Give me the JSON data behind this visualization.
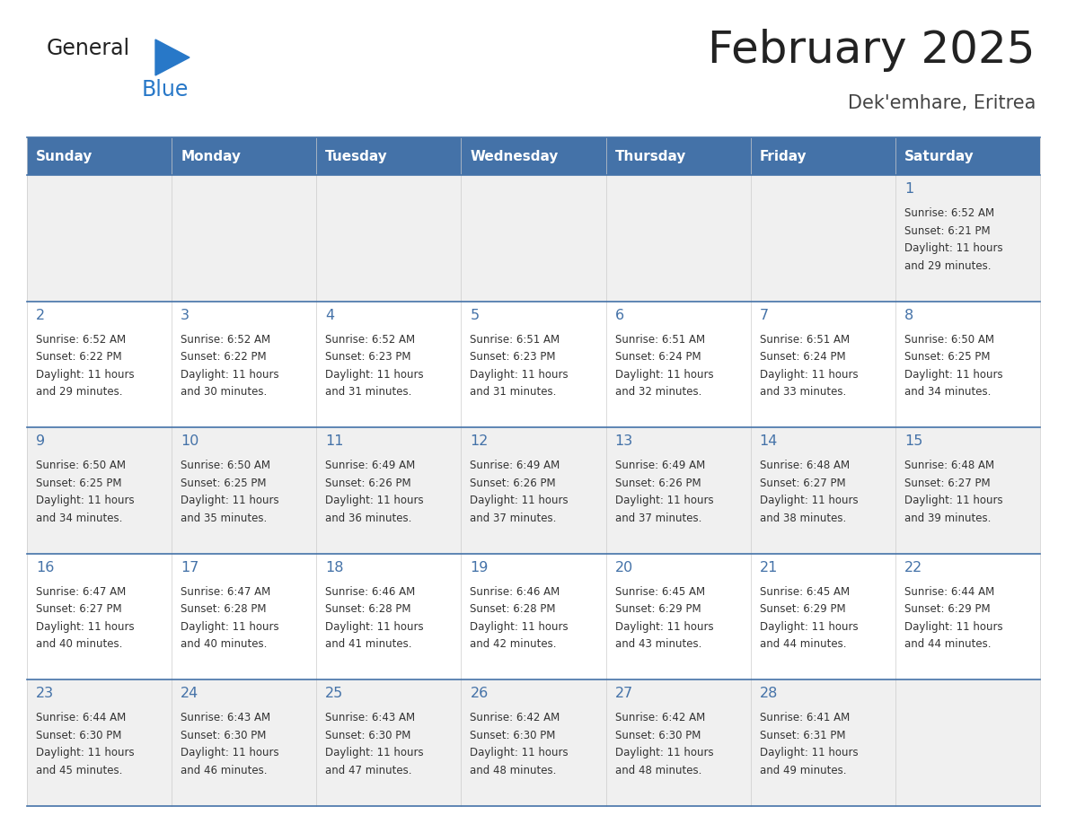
{
  "title": "February 2025",
  "subtitle": "Dek'emhare, Eritrea",
  "days_of_week": [
    "Sunday",
    "Monday",
    "Tuesday",
    "Wednesday",
    "Thursday",
    "Friday",
    "Saturday"
  ],
  "header_bg": "#4472a8",
  "header_text": "#ffffff",
  "row_bg_light": "#f0f0f0",
  "row_bg_white": "#ffffff",
  "border_color": "#4472a8",
  "day_number_color": "#4472a8",
  "cell_text_color": "#333333",
  "logo_general_color": "#222222",
  "logo_blue_color": "#2878c8",
  "logo_triangle_color": "#2878c8",
  "title_color": "#222222",
  "subtitle_color": "#444444",
  "calendar_data": [
    [
      null,
      null,
      null,
      null,
      null,
      null,
      {
        "day": 1,
        "sunrise": "6:52 AM",
        "sunset": "6:21 PM",
        "daylight": "11 hours and 29 minutes"
      }
    ],
    [
      {
        "day": 2,
        "sunrise": "6:52 AM",
        "sunset": "6:22 PM",
        "daylight": "11 hours and 29 minutes"
      },
      {
        "day": 3,
        "sunrise": "6:52 AM",
        "sunset": "6:22 PM",
        "daylight": "11 hours and 30 minutes"
      },
      {
        "day": 4,
        "sunrise": "6:52 AM",
        "sunset": "6:23 PM",
        "daylight": "11 hours and 31 minutes"
      },
      {
        "day": 5,
        "sunrise": "6:51 AM",
        "sunset": "6:23 PM",
        "daylight": "11 hours and 31 minutes"
      },
      {
        "day": 6,
        "sunrise": "6:51 AM",
        "sunset": "6:24 PM",
        "daylight": "11 hours and 32 minutes"
      },
      {
        "day": 7,
        "sunrise": "6:51 AM",
        "sunset": "6:24 PM",
        "daylight": "11 hours and 33 minutes"
      },
      {
        "day": 8,
        "sunrise": "6:50 AM",
        "sunset": "6:25 PM",
        "daylight": "11 hours and 34 minutes"
      }
    ],
    [
      {
        "day": 9,
        "sunrise": "6:50 AM",
        "sunset": "6:25 PM",
        "daylight": "11 hours and 34 minutes"
      },
      {
        "day": 10,
        "sunrise": "6:50 AM",
        "sunset": "6:25 PM",
        "daylight": "11 hours and 35 minutes"
      },
      {
        "day": 11,
        "sunrise": "6:49 AM",
        "sunset": "6:26 PM",
        "daylight": "11 hours and 36 minutes"
      },
      {
        "day": 12,
        "sunrise": "6:49 AM",
        "sunset": "6:26 PM",
        "daylight": "11 hours and 37 minutes"
      },
      {
        "day": 13,
        "sunrise": "6:49 AM",
        "sunset": "6:26 PM",
        "daylight": "11 hours and 37 minutes"
      },
      {
        "day": 14,
        "sunrise": "6:48 AM",
        "sunset": "6:27 PM",
        "daylight": "11 hours and 38 minutes"
      },
      {
        "day": 15,
        "sunrise": "6:48 AM",
        "sunset": "6:27 PM",
        "daylight": "11 hours and 39 minutes"
      }
    ],
    [
      {
        "day": 16,
        "sunrise": "6:47 AM",
        "sunset": "6:27 PM",
        "daylight": "11 hours and 40 minutes"
      },
      {
        "day": 17,
        "sunrise": "6:47 AM",
        "sunset": "6:28 PM",
        "daylight": "11 hours and 40 minutes"
      },
      {
        "day": 18,
        "sunrise": "6:46 AM",
        "sunset": "6:28 PM",
        "daylight": "11 hours and 41 minutes"
      },
      {
        "day": 19,
        "sunrise": "6:46 AM",
        "sunset": "6:28 PM",
        "daylight": "11 hours and 42 minutes"
      },
      {
        "day": 20,
        "sunrise": "6:45 AM",
        "sunset": "6:29 PM",
        "daylight": "11 hours and 43 minutes"
      },
      {
        "day": 21,
        "sunrise": "6:45 AM",
        "sunset": "6:29 PM",
        "daylight": "11 hours and 44 minutes"
      },
      {
        "day": 22,
        "sunrise": "6:44 AM",
        "sunset": "6:29 PM",
        "daylight": "11 hours and 44 minutes"
      }
    ],
    [
      {
        "day": 23,
        "sunrise": "6:44 AM",
        "sunset": "6:30 PM",
        "daylight": "11 hours and 45 minutes"
      },
      {
        "day": 24,
        "sunrise": "6:43 AM",
        "sunset": "6:30 PM",
        "daylight": "11 hours and 46 minutes"
      },
      {
        "day": 25,
        "sunrise": "6:43 AM",
        "sunset": "6:30 PM",
        "daylight": "11 hours and 47 minutes"
      },
      {
        "day": 26,
        "sunrise": "6:42 AM",
        "sunset": "6:30 PM",
        "daylight": "11 hours and 48 minutes"
      },
      {
        "day": 27,
        "sunrise": "6:42 AM",
        "sunset": "6:30 PM",
        "daylight": "11 hours and 48 minutes"
      },
      {
        "day": 28,
        "sunrise": "6:41 AM",
        "sunset": "6:31 PM",
        "daylight": "11 hours and 49 minutes"
      },
      null
    ]
  ]
}
